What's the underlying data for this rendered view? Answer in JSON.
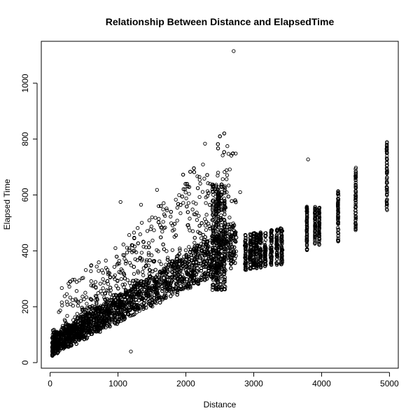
{
  "chart_data": {
    "type": "scatter",
    "title": "Relationship Between Distance and ElapsedTime",
    "xlabel": "Distance",
    "ylabel": "Elapsed Time",
    "xlim": [
      -130,
      5130
    ],
    "ylim": [
      -20,
      1150
    ],
    "x_ticks": [
      0,
      1000,
      2000,
      3000,
      4000,
      5000
    ],
    "y_ticks": [
      0,
      200,
      400,
      600,
      800,
      1000
    ],
    "marker": "open-circle",
    "colors": {
      "points": "#000000",
      "background": "#ffffff",
      "axis": "#000000"
    },
    "grid": false,
    "legend": "none",
    "clusters": [
      {
        "x": 3784,
        "y": [
          400,
          560
        ]
      },
      {
        "x": 3904,
        "y": [
          420,
          560
        ]
      },
      {
        "x": 3965,
        "y": [
          420,
          560
        ]
      },
      {
        "x": 4243,
        "y": [
          430,
          620
        ]
      },
      {
        "x": 4502,
        "y": [
          470,
          700
        ]
      },
      {
        "x": 4962,
        "y": [
          540,
          790
        ]
      }
    ],
    "outliers": [
      {
        "x": 2704,
        "y": 1115
      },
      {
        "x": 2611,
        "y": 775
      },
      {
        "x": 2688,
        "y": 748
      },
      {
        "x": 3801,
        "y": 727
      },
      {
        "x": 2475,
        "y": 680
      },
      {
        "x": 2200,
        "y": 665
      },
      {
        "x": 1575,
        "y": 618
      },
      {
        "x": 2800,
        "y": 610
      },
      {
        "x": 1038,
        "y": 575
      },
      {
        "x": 1600,
        "y": 560
      },
      {
        "x": 1340,
        "y": 565
      },
      {
        "x": 1190,
        "y": 40
      }
    ]
  }
}
